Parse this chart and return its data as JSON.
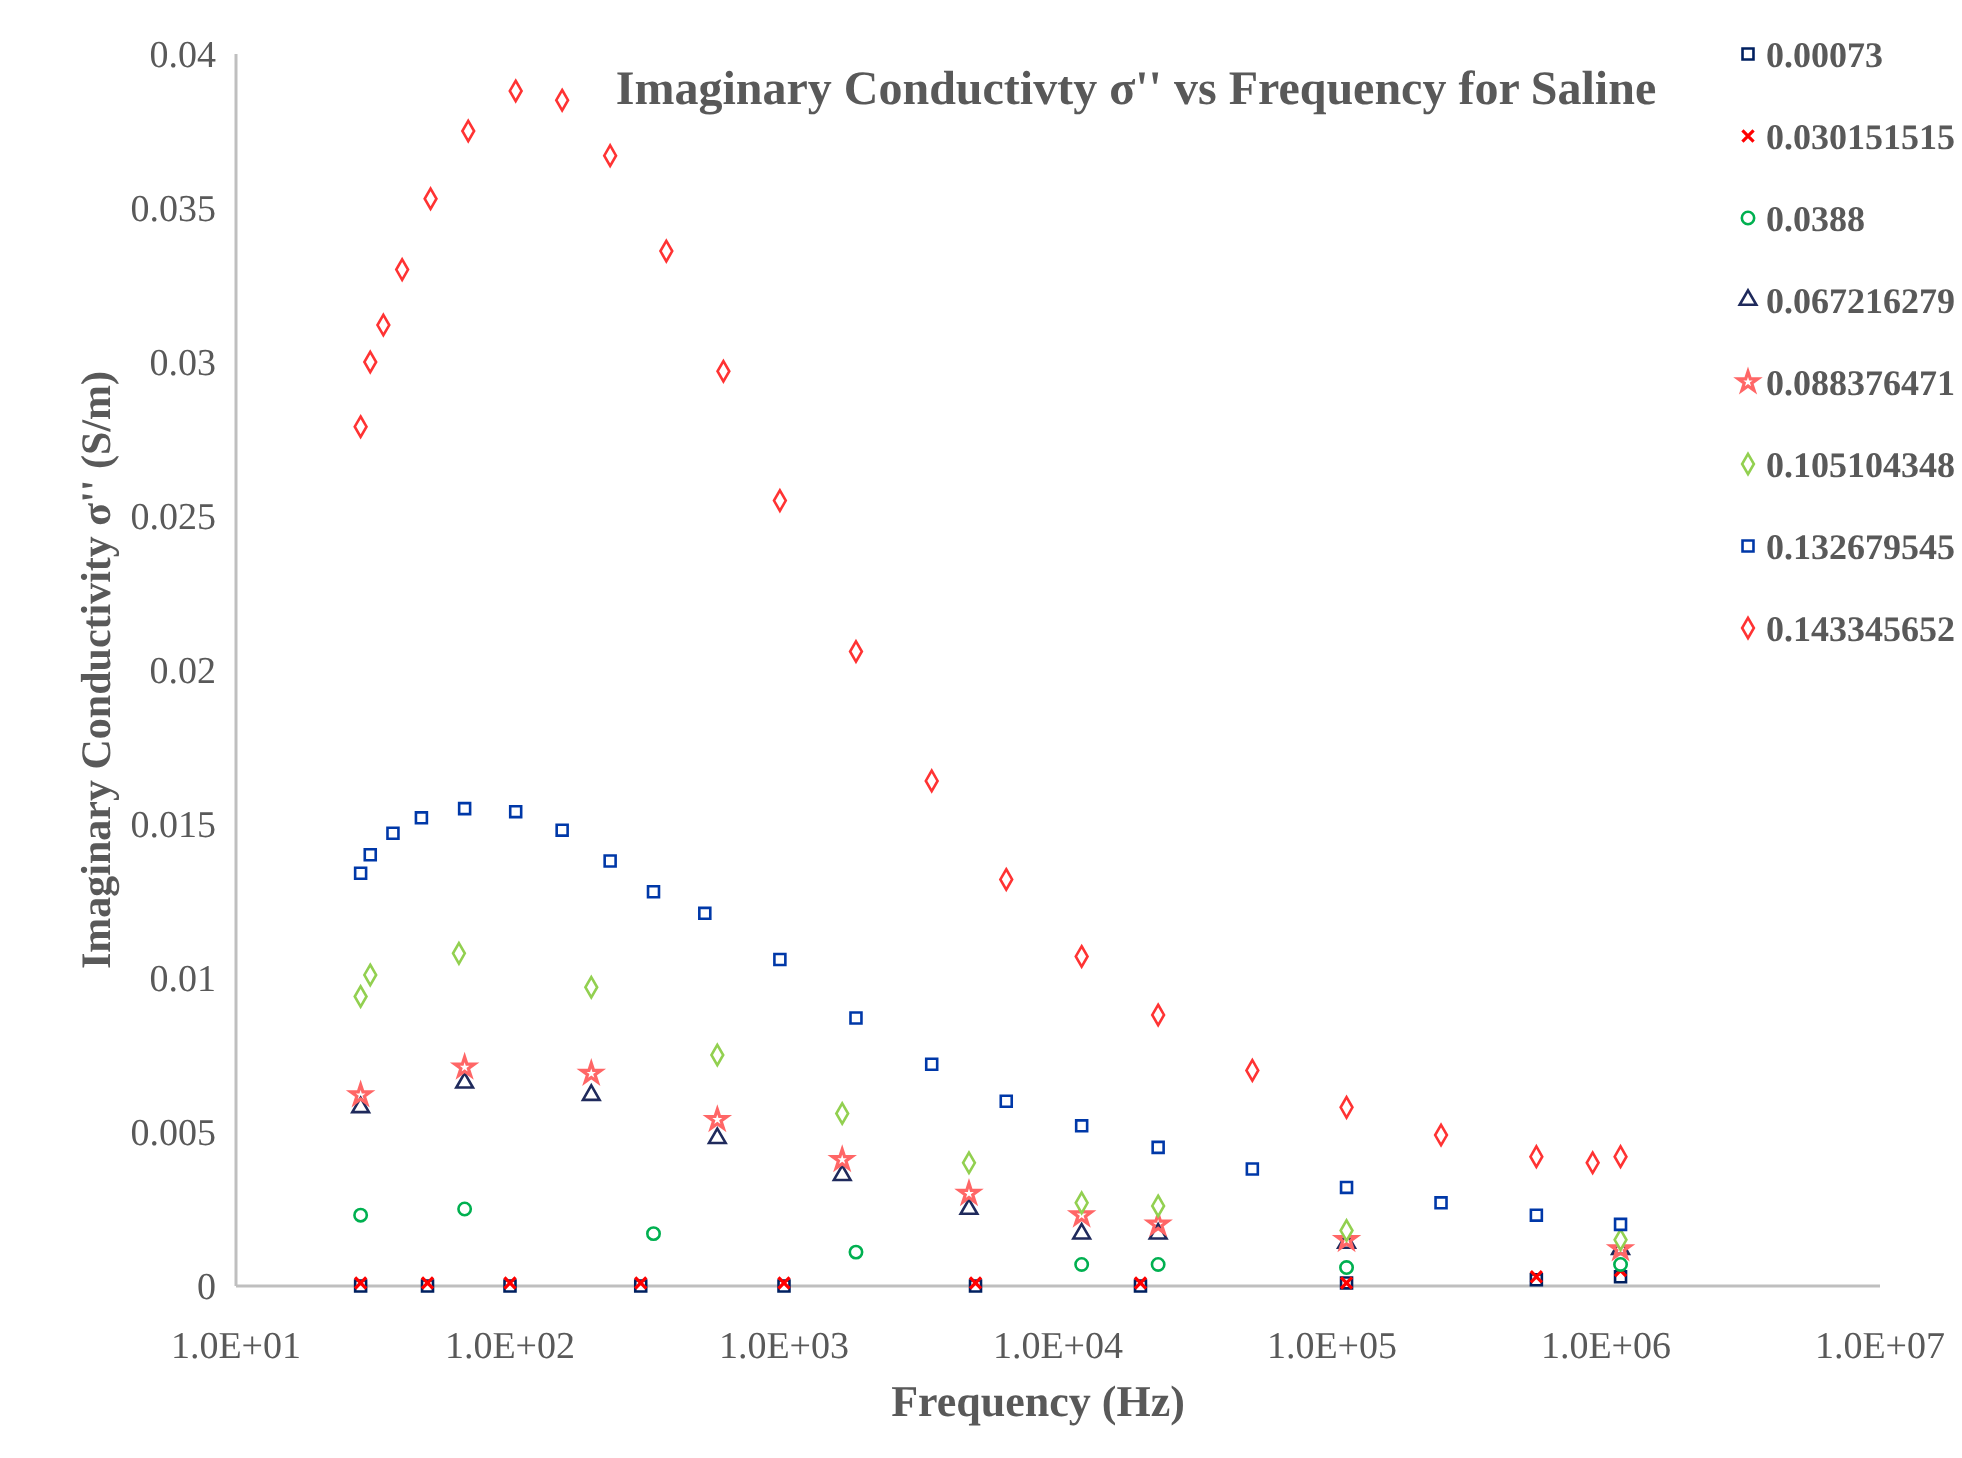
{
  "chart_data": {
    "type": "scatter",
    "title": "Imaginary Conductivty σ''  vs Frequency  for Saline",
    "xlabel": "Frequency (Hz)",
    "ylabel": "Imaginary Conductivity σ'' (S/m)",
    "log": "x",
    "xlim": [
      10,
      10000000
    ],
    "xticks": [
      {
        "value": 10,
        "label": "1.0E+01"
      },
      {
        "value": 100,
        "label": "1.0E+02"
      },
      {
        "value": 1000,
        "label": "1.0E+03"
      },
      {
        "value": 10000,
        "label": "1.0E+04"
      },
      {
        "value": 100000,
        "label": "1.0E+05"
      },
      {
        "value": 1000000,
        "label": "1.0E+06"
      },
      {
        "value": 10000000,
        "label": "1.0E+07"
      }
    ],
    "ylim": [
      0,
      0.04
    ],
    "yticks": [
      0,
      0.005,
      0.01,
      0.015,
      0.02,
      0.025,
      0.03,
      0.035,
      0.04
    ],
    "grid": false,
    "legend": "top right",
    "series": [
      {
        "name": "0.00073",
        "color": "#002060",
        "marker": "square",
        "x": [
          28.5,
          50,
          100,
          300,
          1000,
          5000,
          20000,
          113000,
          557000,
          1130000
        ],
        "values": [
          0,
          0,
          0,
          0,
          0,
          0,
          0,
          0.0001,
          0.0002,
          0.0003
        ]
      },
      {
        "name": "0.030151515",
        "color": "#ff0000",
        "marker": "cross",
        "x": [
          28.5,
          50,
          100,
          300,
          1000,
          5000,
          20000,
          113000,
          557000,
          1130000
        ],
        "values": [
          0.0001,
          0.0001,
          0.0001,
          0.0001,
          0.0001,
          0.0001,
          0.0001,
          0.0001,
          0.0003,
          0.0005
        ]
      },
      {
        "name": "0.0388",
        "color": "#00b050",
        "marker": "circle",
        "x": [
          28.5,
          68.3,
          334,
          1831,
          12200,
          23200,
          113000,
          1130000
        ],
        "values": [
          0.0023,
          0.0025,
          0.0017,
          0.0011,
          0.0007,
          0.0007,
          0.0006,
          0.0007
        ]
      },
      {
        "name": "0.067216279",
        "color": "#1f2a5c",
        "marker": "triangle",
        "x": [
          28.5,
          68.3,
          198,
          571,
          1631,
          4733,
          12200,
          23200,
          113000,
          1130000
        ],
        "values": [
          0.0058,
          0.0066,
          0.0062,
          0.0048,
          0.0036,
          0.0025,
          0.0017,
          0.0017,
          0.0014,
          0.0012
        ]
      },
      {
        "name": "0.088376471",
        "color": "#ff6666",
        "marker": "star",
        "x": [
          28.5,
          68.3,
          198,
          571,
          1631,
          4733,
          12200,
          23200,
          113000,
          1130000
        ],
        "values": [
          0.0062,
          0.0071,
          0.0069,
          0.0054,
          0.0041,
          0.003,
          0.0023,
          0.002,
          0.0015,
          0.0012
        ]
      },
      {
        "name": "0.105104348",
        "color": "#92d050",
        "marker": "diamond",
        "x": [
          28.5,
          30.9,
          65.1,
          198,
          571,
          1631,
          4733,
          12200,
          23200,
          113000,
          1130000
        ],
        "values": [
          0.0094,
          0.0101,
          0.0108,
          0.0097,
          0.0075,
          0.0056,
          0.004,
          0.0027,
          0.0026,
          0.0018,
          0.0015
        ]
      },
      {
        "name": "0.132679545",
        "color": "#0038a8",
        "marker": "square",
        "x": [
          28.5,
          30.9,
          37.4,
          47.5,
          68.3,
          104.9,
          155,
          232,
          334,
          514,
          966,
          1831,
          3460,
          6473,
          12200,
          23200,
          51200,
          113000,
          250000,
          557000,
          1130000
        ],
        "values": [
          0.0134,
          0.014,
          0.0147,
          0.0152,
          0.0155,
          0.0154,
          0.0148,
          0.0138,
          0.0128,
          0.0121,
          0.0106,
          0.0087,
          0.0072,
          0.006,
          0.0052,
          0.0045,
          0.0038,
          0.0032,
          0.0027,
          0.0023,
          0.002
        ]
      },
      {
        "name": "0.143345652",
        "color": "#ff3333",
        "marker": "diamond",
        "x": [
          28.5,
          30.9,
          34.5,
          40.4,
          51.3,
          70.4,
          104.9,
          155,
          232,
          372,
          601,
          966,
          1831,
          3460,
          6473,
          12200,
          23200,
          51200,
          113000,
          250000,
          557000,
          894000,
          1130000
        ],
        "values": [
          0.0279,
          0.03,
          0.0312,
          0.033,
          0.0353,
          0.0375,
          0.0388,
          0.0385,
          0.0367,
          0.0336,
          0.0297,
          0.0255,
          0.0206,
          0.0164,
          0.0132,
          0.0107,
          0.0088,
          0.007,
          0.0058,
          0.0049,
          0.0042,
          0.004,
          0.0042
        ]
      }
    ]
  }
}
